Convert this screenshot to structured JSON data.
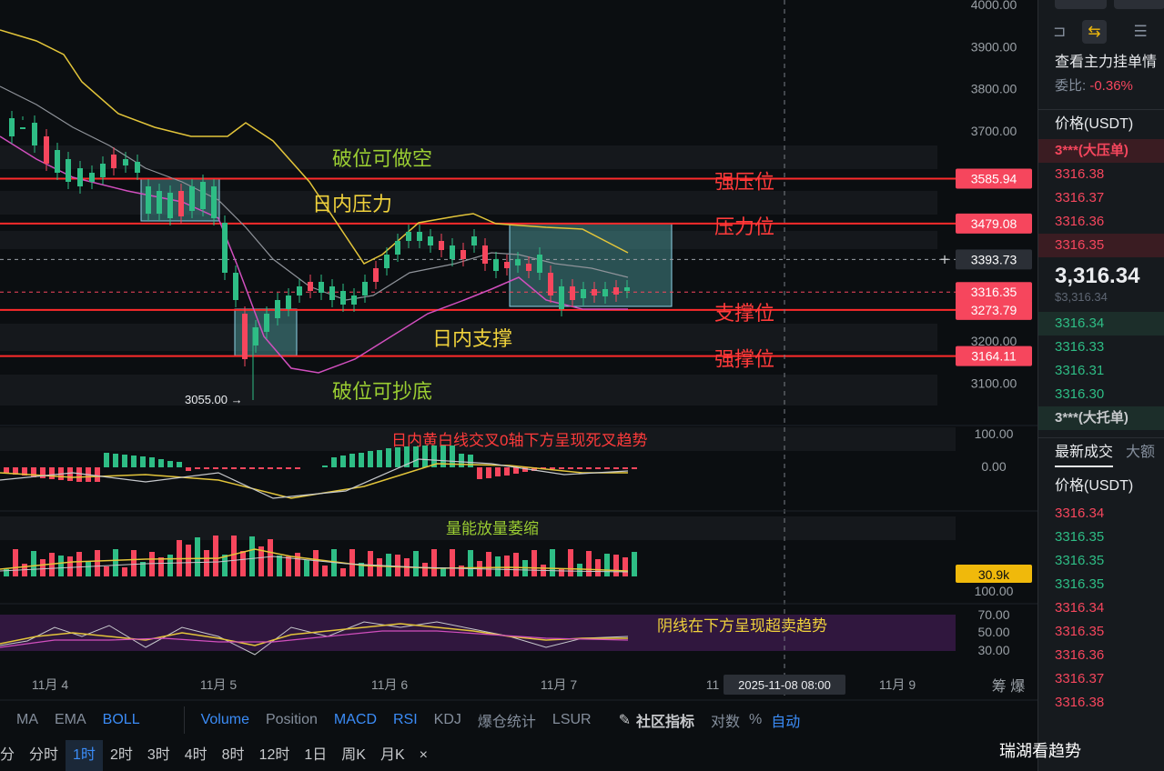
{
  "price_axis": {
    "ticks": [
      "4000.00",
      "3900.00",
      "3800.00",
      "3700.00",
      "3200.00",
      "3100.00"
    ],
    "labels": [
      {
        "text": "3585.94",
        "price": 3585.94,
        "color": "#f6465d"
      },
      {
        "text": "3479.08",
        "price": 3479.08,
        "color": "#f6465d"
      },
      {
        "text": "3393.73",
        "price": 3393.73,
        "color": "#2b2f36"
      },
      {
        "text": "3316.35",
        "price": 3316.35,
        "color": "#f6465d"
      },
      {
        "text": "3273.79",
        "price": 3273.79,
        "color": "#f6465d"
      },
      {
        "text": "3164.11",
        "price": 3164.11,
        "color": "#f6465d"
      }
    ]
  },
  "levels": {
    "strong_resistance": {
      "label": "强压位",
      "price": 3585.94
    },
    "resistance": {
      "label": "压力位",
      "price": 3479.08
    },
    "support": {
      "label": "支撑位",
      "price": 3273.79
    },
    "strong_support": {
      "label": "强撑位",
      "price": 3164.11
    }
  },
  "annotations": {
    "break_short": "破位可做空",
    "intraday_pressure": "日内压力",
    "intraday_support": "日内支撑",
    "break_bottom": "破位可抄底",
    "low_price": "3055.00",
    "macd_note": "日内黄白线交叉0轴下方呈现死叉趋势",
    "volume_note": "量能放量萎缩",
    "rsi_note": "阴线在下方呈现超卖趋势"
  },
  "macd_axis": [
    "100.00",
    "0.00"
  ],
  "volume_axis": {
    "badge": "30.9k",
    "tick": "100.00"
  },
  "rsi_axis": [
    "70.00",
    "50.00",
    "30.00"
  ],
  "time_axis": {
    "labels": [
      "11月 4",
      "11月 5",
      "11月 6",
      "11月 7",
      "11",
      "11月 9"
    ],
    "crosshair": "2025-11-08 08:00",
    "right": "筹  爆"
  },
  "indicator_bar": {
    "left": [
      "MA",
      "EMA",
      "BOLL"
    ],
    "right": [
      "Volume",
      "Position",
      "MACD",
      "RSI",
      "KDJ",
      "爆仓统计",
      "LSUR"
    ],
    "extra": [
      "社区指标",
      "对数",
      "%",
      "自动"
    ]
  },
  "timeframes": [
    "分",
    "分时",
    "1时",
    "2时",
    "3时",
    "4时",
    "8时",
    "12时",
    "1日",
    "周K",
    "月K",
    "×"
  ],
  "active_timeframe": "1时",
  "orderbook": {
    "title": "查看主力挂单情",
    "ratio_label": "委比:",
    "ratio_value": "-0.36%",
    "header": "价格(USDT)",
    "big_ask": "3***(大压单)",
    "asks": [
      "3316.38",
      "3316.37",
      "3316.36",
      "3316.35"
    ],
    "last_price": "3,316.34",
    "last_usd": "$3,316.34",
    "bids": [
      "3316.34",
      "3316.33",
      "3316.31",
      "3316.30"
    ],
    "big_bid": "3***(大托单)",
    "tabs": [
      "最新成交",
      "大额"
    ],
    "trades_header": "价格(USDT)",
    "trades": [
      {
        "p": "3316.34",
        "c": "red"
      },
      {
        "p": "3316.35",
        "c": "green"
      },
      {
        "p": "3316.35",
        "c": "green"
      },
      {
        "p": "3316.35",
        "c": "green"
      },
      {
        "p": "3316.34",
        "c": "red"
      },
      {
        "p": "3316.35",
        "c": "red"
      },
      {
        "p": "3316.36",
        "c": "red"
      },
      {
        "p": "3316.37",
        "c": "red"
      },
      {
        "p": "3316.38",
        "c": "red"
      }
    ]
  },
  "watermark": "瑞湖看趋势",
  "colors": {
    "up": "#2ebd85",
    "down": "#f6465d",
    "level": "#ff2b2b",
    "yellow_text": "#f0d23c",
    "green_text": "#9acd32",
    "red_text": "#ff3b3b"
  }
}
